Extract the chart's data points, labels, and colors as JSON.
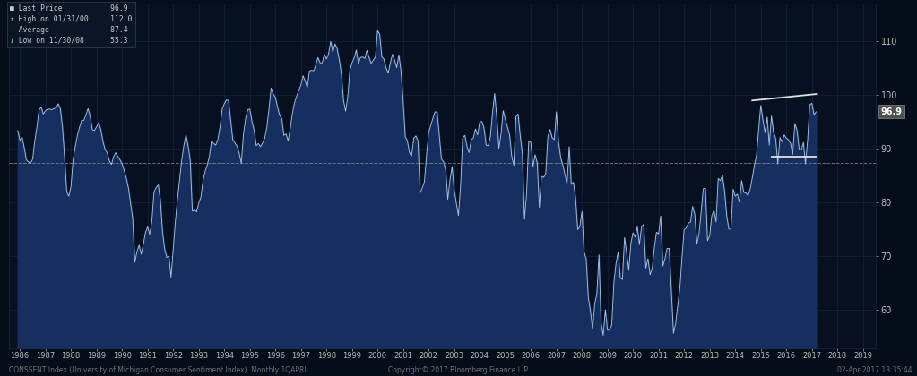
{
  "background_color": "#050d1a",
  "plot_bg_color": "#071020",
  "grid_color": "#1a2a40",
  "last_price": 96.9,
  "high_date": "01/31/00",
  "high_val": 112.0,
  "average": 87.4,
  "low_date": "11/30/08",
  "low_val": 55.3,
  "yticks": [
    60,
    70,
    80,
    90,
    100,
    110
  ],
  "ylim": [
    53,
    117
  ],
  "xlim_start": 1985.58,
  "xlim_end": 2019.5,
  "xticks": [
    1986,
    1987,
    1988,
    1989,
    1990,
    1991,
    1992,
    1993,
    1994,
    1995,
    1996,
    1997,
    1998,
    1999,
    2000,
    2001,
    2002,
    2003,
    2004,
    2005,
    2006,
    2007,
    2008,
    2009,
    2010,
    2011,
    2012,
    2013,
    2014,
    2015,
    2016,
    2017,
    2018,
    2019
  ],
  "fill_color": "#153060",
  "line_color": "#a8c4e0",
  "avg_line_color": "#888888",
  "trendline_color": "#e0e0e0",
  "footer_text": "CONSSENT Index (University of Michigan Consumer Sentiment Index)  Monthly 1QAPRI",
  "copyright_text": "Copyright© 2017 Bloomberg Finance L.P.",
  "timestamp_text": "02-Apr-2017 13:35:44",
  "data": [
    [
      1985.917,
      93.4
    ],
    [
      1986.0,
      91.6
    ],
    [
      1986.083,
      92.2
    ],
    [
      1986.167,
      90.3
    ],
    [
      1986.25,
      88.0
    ],
    [
      1986.333,
      87.6
    ],
    [
      1986.417,
      87.3
    ],
    [
      1986.5,
      88.1
    ],
    [
      1986.583,
      91.5
    ],
    [
      1986.667,
      94.1
    ],
    [
      1986.75,
      97.2
    ],
    [
      1986.833,
      97.8
    ],
    [
      1986.917,
      96.5
    ],
    [
      1987.0,
      97.1
    ],
    [
      1987.083,
      97.4
    ],
    [
      1987.167,
      97.4
    ],
    [
      1987.25,
      97.3
    ],
    [
      1987.333,
      97.5
    ],
    [
      1987.417,
      97.6
    ],
    [
      1987.5,
      98.4
    ],
    [
      1987.583,
      97.5
    ],
    [
      1987.667,
      94.0
    ],
    [
      1987.75,
      88.4
    ],
    [
      1987.833,
      82.0
    ],
    [
      1987.917,
      81.2
    ],
    [
      1988.0,
      83.0
    ],
    [
      1988.083,
      88.0
    ],
    [
      1988.167,
      90.4
    ],
    [
      1988.25,
      92.5
    ],
    [
      1988.333,
      94.0
    ],
    [
      1988.417,
      95.3
    ],
    [
      1988.5,
      95.3
    ],
    [
      1988.583,
      96.3
    ],
    [
      1988.667,
      97.5
    ],
    [
      1988.75,
      96.1
    ],
    [
      1988.833,
      93.6
    ],
    [
      1988.917,
      93.4
    ],
    [
      1989.0,
      94.1
    ],
    [
      1989.083,
      94.9
    ],
    [
      1989.167,
      93.6
    ],
    [
      1989.25,
      91.4
    ],
    [
      1989.333,
      89.9
    ],
    [
      1989.417,
      89.3
    ],
    [
      1989.5,
      87.8
    ],
    [
      1989.583,
      87.1
    ],
    [
      1989.667,
      88.5
    ],
    [
      1989.75,
      89.3
    ],
    [
      1989.833,
      88.6
    ],
    [
      1989.917,
      88.0
    ],
    [
      1990.0,
      87.2
    ],
    [
      1990.083,
      86.0
    ],
    [
      1990.167,
      84.5
    ],
    [
      1990.25,
      82.7
    ],
    [
      1990.333,
      79.8
    ],
    [
      1990.417,
      77.0
    ],
    [
      1990.5,
      68.9
    ],
    [
      1990.583,
      70.9
    ],
    [
      1990.667,
      72.1
    ],
    [
      1990.75,
      70.4
    ],
    [
      1990.833,
      72.3
    ],
    [
      1990.917,
      74.5
    ],
    [
      1991.0,
      75.5
    ],
    [
      1991.083,
      74.1
    ],
    [
      1991.167,
      76.6
    ],
    [
      1991.25,
      82.0
    ],
    [
      1991.333,
      82.8
    ],
    [
      1991.417,
      83.3
    ],
    [
      1991.5,
      80.5
    ],
    [
      1991.583,
      74.5
    ],
    [
      1991.667,
      71.4
    ],
    [
      1991.75,
      69.8
    ],
    [
      1991.833,
      70.1
    ],
    [
      1991.917,
      66.1
    ],
    [
      1992.0,
      71.3
    ],
    [
      1992.083,
      76.3
    ],
    [
      1992.167,
      80.6
    ],
    [
      1992.25,
      84.3
    ],
    [
      1992.333,
      87.9
    ],
    [
      1992.417,
      90.6
    ],
    [
      1992.5,
      92.6
    ],
    [
      1992.583,
      90.6
    ],
    [
      1992.667,
      87.9
    ],
    [
      1992.75,
      78.4
    ],
    [
      1992.833,
      78.6
    ],
    [
      1992.917,
      78.3
    ],
    [
      1993.0,
      79.9
    ],
    [
      1993.083,
      81.0
    ],
    [
      1993.167,
      84.1
    ],
    [
      1993.25,
      85.8
    ],
    [
      1993.333,
      87.0
    ],
    [
      1993.417,
      88.6
    ],
    [
      1993.5,
      91.5
    ],
    [
      1993.583,
      91.0
    ],
    [
      1993.667,
      90.7
    ],
    [
      1993.75,
      91.8
    ],
    [
      1993.833,
      94.0
    ],
    [
      1993.917,
      97.4
    ],
    [
      1994.0,
      98.4
    ],
    [
      1994.083,
      99.1
    ],
    [
      1994.167,
      99.0
    ],
    [
      1994.25,
      95.3
    ],
    [
      1994.333,
      91.7
    ],
    [
      1994.417,
      91.1
    ],
    [
      1994.5,
      90.5
    ],
    [
      1994.583,
      89.2
    ],
    [
      1994.667,
      87.3
    ],
    [
      1994.75,
      92.7
    ],
    [
      1994.833,
      95.6
    ],
    [
      1994.917,
      97.3
    ],
    [
      1995.0,
      97.4
    ],
    [
      1995.083,
      95.1
    ],
    [
      1995.167,
      93.5
    ],
    [
      1995.25,
      90.6
    ],
    [
      1995.333,
      91.0
    ],
    [
      1995.417,
      90.4
    ],
    [
      1995.5,
      91.1
    ],
    [
      1995.583,
      92.0
    ],
    [
      1995.667,
      94.0
    ],
    [
      1995.75,
      97.5
    ],
    [
      1995.833,
      101.3
    ],
    [
      1995.917,
      100.2
    ],
    [
      1996.0,
      99.6
    ],
    [
      1996.083,
      97.8
    ],
    [
      1996.167,
      96.3
    ],
    [
      1996.25,
      95.6
    ],
    [
      1996.333,
      92.5
    ],
    [
      1996.417,
      92.8
    ],
    [
      1996.5,
      91.5
    ],
    [
      1996.583,
      93.8
    ],
    [
      1996.667,
      96.6
    ],
    [
      1996.75,
      98.6
    ],
    [
      1996.833,
      99.8
    ],
    [
      1996.917,
      100.9
    ],
    [
      1997.0,
      101.9
    ],
    [
      1997.083,
      103.6
    ],
    [
      1997.167,
      102.6
    ],
    [
      1997.25,
      101.4
    ],
    [
      1997.333,
      104.5
    ],
    [
      1997.417,
      104.6
    ],
    [
      1997.5,
      104.5
    ],
    [
      1997.583,
      105.6
    ],
    [
      1997.667,
      107.0
    ],
    [
      1997.75,
      106.0
    ],
    [
      1997.833,
      106.0
    ],
    [
      1997.917,
      107.6
    ],
    [
      1998.0,
      106.7
    ],
    [
      1998.083,
      107.7
    ],
    [
      1998.167,
      110.0
    ],
    [
      1998.25,
      108.0
    ],
    [
      1998.333,
      109.5
    ],
    [
      1998.417,
      108.7
    ],
    [
      1998.5,
      106.6
    ],
    [
      1998.583,
      104.0
    ],
    [
      1998.667,
      99.0
    ],
    [
      1998.75,
      97.0
    ],
    [
      1998.833,
      99.7
    ],
    [
      1998.917,
      104.6
    ],
    [
      1999.0,
      106.0
    ],
    [
      1999.083,
      106.9
    ],
    [
      1999.167,
      108.4
    ],
    [
      1999.25,
      105.9
    ],
    [
      1999.333,
      107.0
    ],
    [
      1999.417,
      107.1
    ],
    [
      1999.5,
      106.8
    ],
    [
      1999.583,
      108.3
    ],
    [
      1999.667,
      107.0
    ],
    [
      1999.75,
      105.9
    ],
    [
      1999.833,
      106.5
    ],
    [
      1999.917,
      107.1
    ],
    [
      2000.0,
      112.0
    ],
    [
      2000.083,
      111.3
    ],
    [
      2000.167,
      107.1
    ],
    [
      2000.25,
      106.7
    ],
    [
      2000.333,
      105.0
    ],
    [
      2000.417,
      104.1
    ],
    [
      2000.5,
      106.0
    ],
    [
      2000.583,
      107.6
    ],
    [
      2000.667,
      106.5
    ],
    [
      2000.75,
      105.1
    ],
    [
      2000.833,
      107.5
    ],
    [
      2000.917,
      104.5
    ],
    [
      2001.0,
      99.0
    ],
    [
      2001.083,
      92.3
    ],
    [
      2001.167,
      91.5
    ],
    [
      2001.25,
      89.3
    ],
    [
      2001.333,
      88.7
    ],
    [
      2001.417,
      92.0
    ],
    [
      2001.5,
      92.4
    ],
    [
      2001.583,
      91.5
    ],
    [
      2001.667,
      81.8
    ],
    [
      2001.75,
      82.7
    ],
    [
      2001.833,
      83.9
    ],
    [
      2001.917,
      88.8
    ],
    [
      2002.0,
      93.0
    ],
    [
      2002.083,
      94.4
    ],
    [
      2002.167,
      95.7
    ],
    [
      2002.25,
      96.9
    ],
    [
      2002.333,
      96.8
    ],
    [
      2002.417,
      92.4
    ],
    [
      2002.5,
      88.1
    ],
    [
      2002.583,
      87.6
    ],
    [
      2002.667,
      86.1
    ],
    [
      2002.75,
      80.6
    ],
    [
      2002.833,
      84.2
    ],
    [
      2002.917,
      86.7
    ],
    [
      2003.0,
      82.4
    ],
    [
      2003.083,
      79.9
    ],
    [
      2003.167,
      77.6
    ],
    [
      2003.25,
      83.2
    ],
    [
      2003.333,
      92.1
    ],
    [
      2003.417,
      92.5
    ],
    [
      2003.5,
      90.5
    ],
    [
      2003.583,
      89.3
    ],
    [
      2003.667,
      91.7
    ],
    [
      2003.75,
      92.0
    ],
    [
      2003.833,
      93.7
    ],
    [
      2003.917,
      92.6
    ],
    [
      2004.0,
      95.0
    ],
    [
      2004.083,
      95.1
    ],
    [
      2004.167,
      93.9
    ],
    [
      2004.25,
      90.7
    ],
    [
      2004.333,
      90.6
    ],
    [
      2004.417,
      92.3
    ],
    [
      2004.5,
      96.7
    ],
    [
      2004.583,
      100.3
    ],
    [
      2004.667,
      95.9
    ],
    [
      2004.75,
      90.1
    ],
    [
      2004.833,
      92.8
    ],
    [
      2004.917,
      97.1
    ],
    [
      2005.0,
      95.5
    ],
    [
      2005.083,
      94.1
    ],
    [
      2005.167,
      92.6
    ],
    [
      2005.25,
      88.7
    ],
    [
      2005.333,
      86.9
    ],
    [
      2005.417,
      96.0
    ],
    [
      2005.5,
      96.5
    ],
    [
      2005.583,
      92.5
    ],
    [
      2005.667,
      89.1
    ],
    [
      2005.75,
      76.9
    ],
    [
      2005.833,
      81.6
    ],
    [
      2005.917,
      91.5
    ],
    [
      2006.0,
      91.2
    ],
    [
      2006.083,
      86.7
    ],
    [
      2006.167,
      88.9
    ],
    [
      2006.25,
      87.4
    ],
    [
      2006.333,
      79.1
    ],
    [
      2006.417,
      84.9
    ],
    [
      2006.5,
      84.7
    ],
    [
      2006.583,
      85.4
    ],
    [
      2006.667,
      92.3
    ],
    [
      2006.75,
      93.6
    ],
    [
      2006.833,
      92.1
    ],
    [
      2006.917,
      91.7
    ],
    [
      2007.0,
      96.9
    ],
    [
      2007.083,
      91.3
    ],
    [
      2007.167,
      88.4
    ],
    [
      2007.25,
      87.0
    ],
    [
      2007.333,
      85.3
    ],
    [
      2007.417,
      83.4
    ],
    [
      2007.5,
      90.4
    ],
    [
      2007.583,
      83.4
    ],
    [
      2007.667,
      83.8
    ],
    [
      2007.75,
      80.9
    ],
    [
      2007.833,
      75.0
    ],
    [
      2007.917,
      75.5
    ],
    [
      2008.0,
      78.4
    ],
    [
      2008.083,
      70.8
    ],
    [
      2008.167,
      69.5
    ],
    [
      2008.25,
      62.3
    ],
    [
      2008.333,
      59.8
    ],
    [
      2008.417,
      56.4
    ],
    [
      2008.5,
      61.2
    ],
    [
      2008.583,
      63.0
    ],
    [
      2008.667,
      70.3
    ],
    [
      2008.75,
      57.5
    ],
    [
      2008.833,
      55.3
    ],
    [
      2008.917,
      60.1
    ],
    [
      2009.0,
      56.3
    ],
    [
      2009.083,
      56.3
    ],
    [
      2009.167,
      57.3
    ],
    [
      2009.25,
      65.1
    ],
    [
      2009.333,
      68.7
    ],
    [
      2009.417,
      70.8
    ],
    [
      2009.5,
      66.0
    ],
    [
      2009.583,
      65.7
    ],
    [
      2009.667,
      73.5
    ],
    [
      2009.75,
      70.6
    ],
    [
      2009.833,
      67.4
    ],
    [
      2009.917,
      72.5
    ],
    [
      2010.0,
      74.4
    ],
    [
      2010.083,
      73.6
    ],
    [
      2010.167,
      75.5
    ],
    [
      2010.25,
      72.2
    ],
    [
      2010.333,
      75.5
    ],
    [
      2010.417,
      76.0
    ],
    [
      2010.5,
      67.8
    ],
    [
      2010.583,
      69.6
    ],
    [
      2010.667,
      66.6
    ],
    [
      2010.75,
      67.7
    ],
    [
      2010.833,
      71.6
    ],
    [
      2010.917,
      74.5
    ],
    [
      2011.0,
      74.2
    ],
    [
      2011.083,
      77.5
    ],
    [
      2011.167,
      68.2
    ],
    [
      2011.25,
      69.6
    ],
    [
      2011.333,
      71.5
    ],
    [
      2011.417,
      71.5
    ],
    [
      2011.5,
      63.7
    ],
    [
      2011.583,
      55.7
    ],
    [
      2011.667,
      57.5
    ],
    [
      2011.75,
      60.9
    ],
    [
      2011.833,
      64.1
    ],
    [
      2011.917,
      69.9
    ],
    [
      2012.0,
      75.0
    ],
    [
      2012.083,
      75.3
    ],
    [
      2012.167,
      76.2
    ],
    [
      2012.25,
      76.4
    ],
    [
      2012.333,
      79.3
    ],
    [
      2012.417,
      77.8
    ],
    [
      2012.5,
      72.3
    ],
    [
      2012.583,
      74.3
    ],
    [
      2012.667,
      78.3
    ],
    [
      2012.75,
      82.6
    ],
    [
      2012.833,
      82.7
    ],
    [
      2012.917,
      72.9
    ],
    [
      2013.0,
      73.8
    ],
    [
      2013.083,
      77.6
    ],
    [
      2013.167,
      78.6
    ],
    [
      2013.25,
      76.4
    ],
    [
      2013.333,
      84.5
    ],
    [
      2013.417,
      84.1
    ],
    [
      2013.5,
      85.1
    ],
    [
      2013.583,
      82.1
    ],
    [
      2013.667,
      77.5
    ],
    [
      2013.75,
      75.1
    ],
    [
      2013.833,
      75.1
    ],
    [
      2013.917,
      82.5
    ],
    [
      2014.0,
      81.2
    ],
    [
      2014.083,
      81.6
    ],
    [
      2014.167,
      80.0
    ],
    [
      2014.25,
      84.1
    ],
    [
      2014.333,
      81.9
    ],
    [
      2014.417,
      81.8
    ],
    [
      2014.5,
      81.3
    ],
    [
      2014.583,
      82.5
    ],
    [
      2014.667,
      84.6
    ],
    [
      2014.75,
      86.9
    ],
    [
      2014.833,
      88.8
    ],
    [
      2014.917,
      93.6
    ],
    [
      2015.0,
      98.1
    ],
    [
      2015.083,
      95.4
    ],
    [
      2015.167,
      93.0
    ],
    [
      2015.25,
      95.9
    ],
    [
      2015.333,
      90.7
    ],
    [
      2015.417,
      96.1
    ],
    [
      2015.5,
      93.1
    ],
    [
      2015.583,
      91.9
    ],
    [
      2015.667,
      87.2
    ],
    [
      2015.75,
      92.1
    ],
    [
      2015.833,
      91.3
    ],
    [
      2015.917,
      92.6
    ],
    [
      2016.0,
      92.0
    ],
    [
      2016.083,
      91.7
    ],
    [
      2016.167,
      91.0
    ],
    [
      2016.25,
      89.0
    ],
    [
      2016.333,
      94.7
    ],
    [
      2016.417,
      93.5
    ],
    [
      2016.5,
      90.0
    ],
    [
      2016.583,
      89.8
    ],
    [
      2016.667,
      91.2
    ],
    [
      2016.75,
      87.2
    ],
    [
      2016.833,
      91.6
    ],
    [
      2016.917,
      98.2
    ],
    [
      2017.0,
      98.5
    ],
    [
      2017.083,
      96.3
    ],
    [
      2017.167,
      96.9
    ]
  ],
  "trendline": [
    [
      2014.667,
      99.0
    ],
    [
      2017.167,
      100.2
    ]
  ],
  "support_line": [
    [
      2015.417,
      88.6
    ],
    [
      2017.167,
      88.6
    ]
  ]
}
